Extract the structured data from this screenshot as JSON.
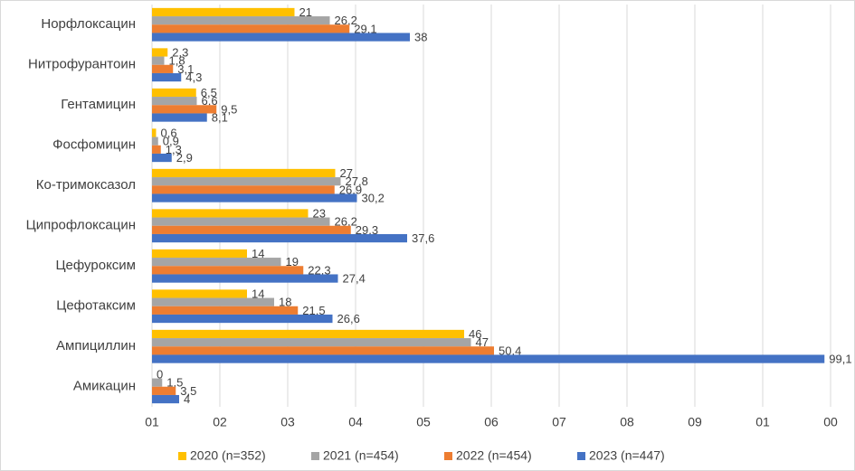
{
  "chart_data": {
    "type": "hbar",
    "categories": [
      "Норфлоксацин",
      "Нитрофурантоин",
      "Гентамицин",
      "Фосфомицин",
      "Ко-тримоксазол",
      "Ципрофлоксацин",
      "Цефуроксим",
      "Цефотаксим",
      "Ампициллин",
      "Амикацин"
    ],
    "series": [
      {
        "name": "2020 (n=352)",
        "color": "#FFC000",
        "values": [
          21,
          2.3,
          6.5,
          0.6,
          27,
          23,
          14,
          14,
          46,
          0
        ],
        "value_labels": [
          "21",
          "2,3",
          "6,5",
          "0,6",
          "27",
          "23",
          "14",
          "14",
          "46",
          "0"
        ]
      },
      {
        "name": "2021 (n=454)",
        "color": "#A5A5A5",
        "values": [
          26.2,
          1.8,
          6.6,
          0.9,
          27.8,
          26.2,
          19,
          18,
          47,
          1.5
        ],
        "value_labels": [
          "26,2",
          "1,8",
          "6,6",
          "0,9",
          "27,8",
          "26,2",
          "19",
          "18",
          "47",
          "1,5"
        ]
      },
      {
        "name": "2022 (n=454)",
        "color": "#ED7D31",
        "values": [
          29.1,
          3.1,
          9.5,
          1.3,
          26.9,
          29.3,
          22.3,
          21.5,
          50.4,
          3.5
        ],
        "value_labels": [
          "29,1",
          "3,1",
          "9,5",
          "1,3",
          "26,9",
          "29,3",
          "22,3",
          "21,5",
          "50,4",
          "3,5"
        ]
      },
      {
        "name": "2023 (n=447)",
        "color": "#4472C4",
        "values": [
          38,
          4.3,
          8.1,
          2.9,
          30.2,
          37.6,
          27.4,
          26.6,
          99.1,
          4
        ],
        "value_labels": [
          "38",
          "4,3",
          "8,1",
          "2,9",
          "30,2",
          "37,6",
          "27,4",
          "26,6",
          "99,1",
          "4"
        ]
      }
    ],
    "xlim": [
      0,
      100
    ],
    "xticks": [
      {
        "value": 0,
        "label": "01"
      },
      {
        "value": 10,
        "label": "02"
      },
      {
        "value": 20,
        "label": "03"
      },
      {
        "value": 30,
        "label": "04"
      },
      {
        "value": 40,
        "label": "05"
      },
      {
        "value": 50,
        "label": "06"
      },
      {
        "value": 60,
        "label": "07"
      },
      {
        "value": 70,
        "label": "08"
      },
      {
        "value": 80,
        "label": "09"
      },
      {
        "value": 90,
        "label": "01"
      },
      {
        "value": 100,
        "label": "00"
      }
    ],
    "grid": true,
    "legend": "bottom"
  }
}
